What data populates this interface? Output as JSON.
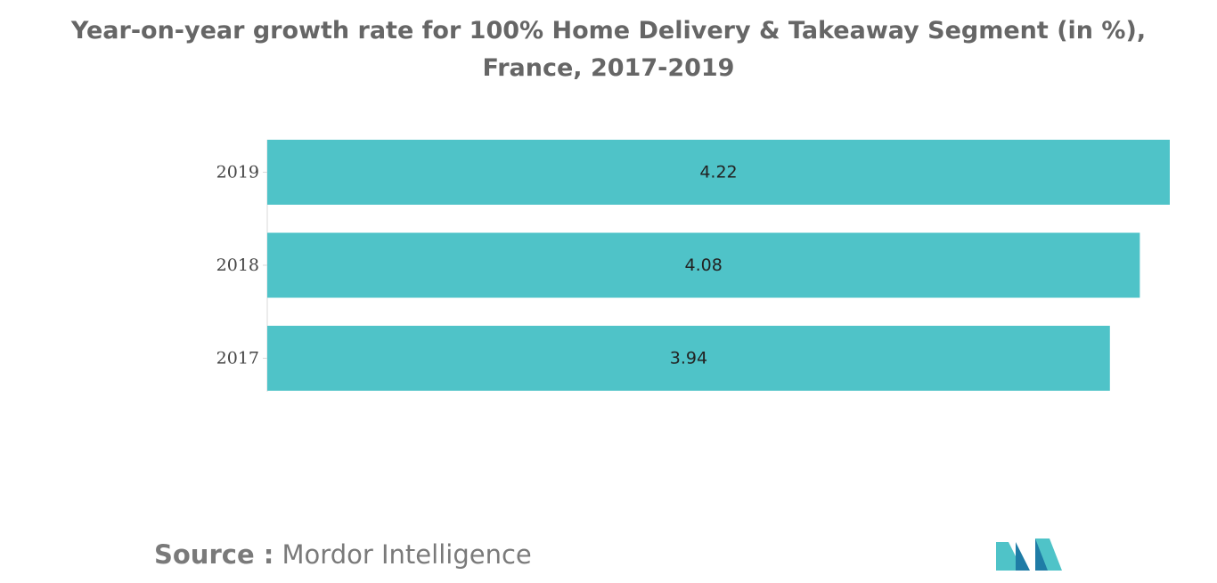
{
  "chart_data": {
    "type": "bar",
    "orientation": "horizontal",
    "title": "Year-on-year growth rate for 100% Home Delivery & Takeaway Segment (in %), France, 2017-2019",
    "categories": [
      "2019",
      "2018",
      "2017"
    ],
    "values": [
      4.22,
      4.08,
      3.94
    ],
    "xlabel": "",
    "ylabel": "",
    "xlim": [
      0,
      4.22
    ],
    "grid": false,
    "legend": "none",
    "bar_color": "#4fc3c8"
  },
  "source": {
    "label": "Source :",
    "text": "Mordor Intelligence"
  },
  "colors": {
    "title": "#666666",
    "source": "#7a7a7a",
    "logo_dark": "#1f7ca6",
    "logo_light": "#4fc3c8"
  }
}
